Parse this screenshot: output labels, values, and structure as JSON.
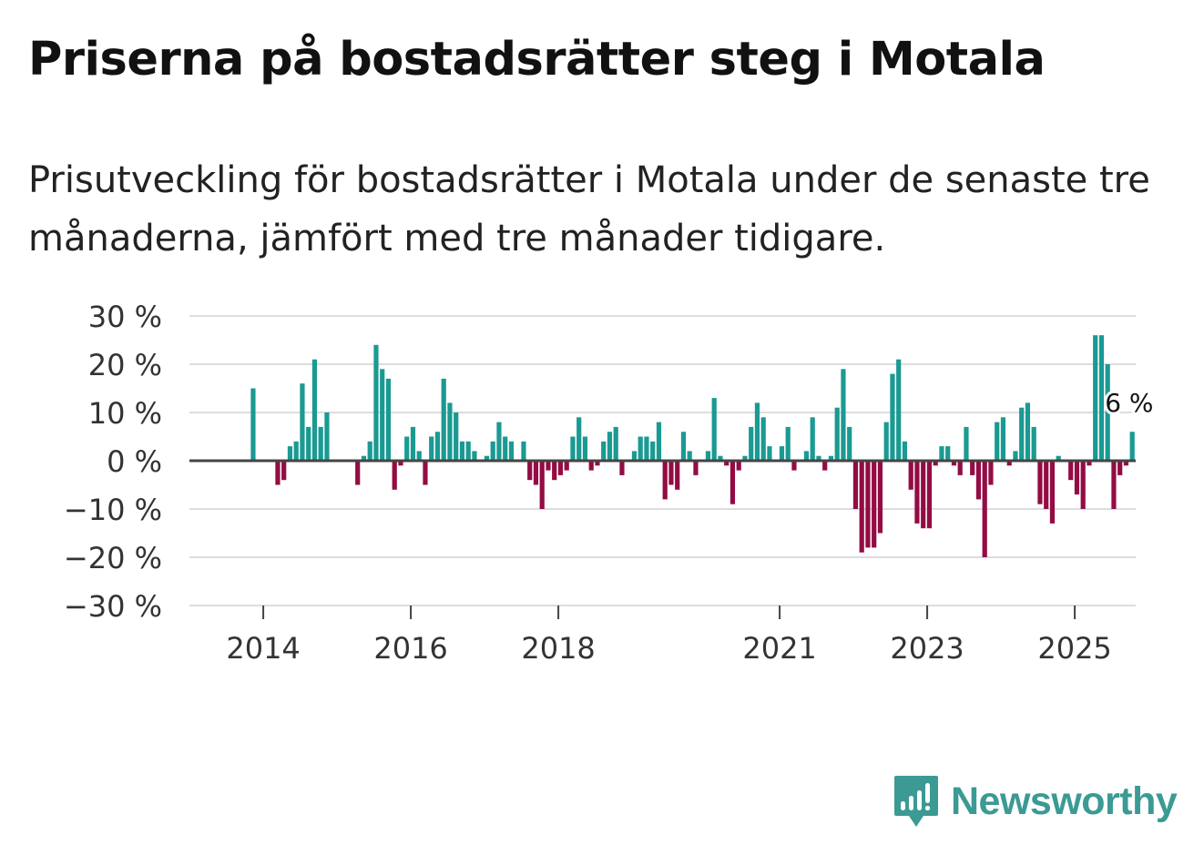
{
  "header": {
    "title": "Priserna på bostadsrätter steg i Motala",
    "subtitle": "Prisutveckling för bostadsrätter i Motala under de senaste tre månaderna, jämfört med tre månader tidigare."
  },
  "brand": {
    "name": "Newsworthy",
    "icon": "newsworthy-logo-icon",
    "color": "#3b9a94"
  },
  "colors": {
    "positive": "#1a9a92",
    "negative": "#930c44",
    "grid": "#dddddd",
    "zero_line": "#444444",
    "axis_text": "#333333"
  },
  "chart_data": {
    "type": "bar",
    "title": "Priserna på bostadsrätter steg i Motala",
    "xlabel": "",
    "ylabel": "",
    "ylim": [
      -30,
      30
    ],
    "y_ticks": [
      30,
      20,
      10,
      0,
      -10,
      -20,
      -30
    ],
    "y_tick_labels": [
      "30 %",
      "20 %",
      "10 %",
      "0 %",
      "−10 %",
      "−20 %",
      "−30 %"
    ],
    "x_ticks": [
      {
        "label": "2014",
        "year": 2014
      },
      {
        "label": "2016",
        "year": 2016
      },
      {
        "label": "2018",
        "year": 2018
      },
      {
        "label": "2021",
        "year": 2021
      },
      {
        "label": "2023",
        "year": 2023
      },
      {
        "label": "2025",
        "year": 2025
      }
    ],
    "start": {
      "year": 2013,
      "month": 8
    },
    "end_label": "6 %",
    "unit": "%",
    "values": [
      0,
      0,
      0,
      15,
      0,
      0,
      0,
      -5,
      -4,
      3,
      4,
      16,
      7,
      21,
      7,
      10,
      0,
      0,
      0,
      0,
      -5,
      1,
      4,
      24,
      19,
      17,
      -6,
      -1,
      5,
      7,
      2,
      -5,
      5,
      6,
      17,
      12,
      10,
      4,
      4,
      2,
      0,
      1,
      4,
      8,
      5,
      4,
      0,
      4,
      -4,
      -5,
      -10,
      -2,
      -4,
      -3,
      -2,
      5,
      9,
      5,
      -2,
      -1,
      4,
      6,
      7,
      -3,
      0,
      2,
      5,
      5,
      4,
      8,
      -8,
      -5,
      -6,
      6,
      2,
      -3,
      0,
      2,
      13,
      1,
      -1,
      -9,
      -2,
      1,
      7,
      12,
      9,
      3,
      0,
      3,
      7,
      -2,
      0,
      2,
      9,
      1,
      -2,
      1,
      11,
      19,
      7,
      -10,
      -19,
      -18,
      -18,
      -15,
      8,
      18,
      21,
      4,
      -6,
      -13,
      -14,
      -14,
      -1,
      3,
      3,
      -1,
      -3,
      7,
      -3,
      -8,
      -20,
      -5,
      8,
      9,
      -1,
      2,
      11,
      12,
      7,
      -9,
      -10,
      -13,
      1,
      0,
      -4,
      -7,
      -10,
      -1,
      26,
      26,
      20,
      -10,
      -3,
      -1,
      6
    ]
  }
}
